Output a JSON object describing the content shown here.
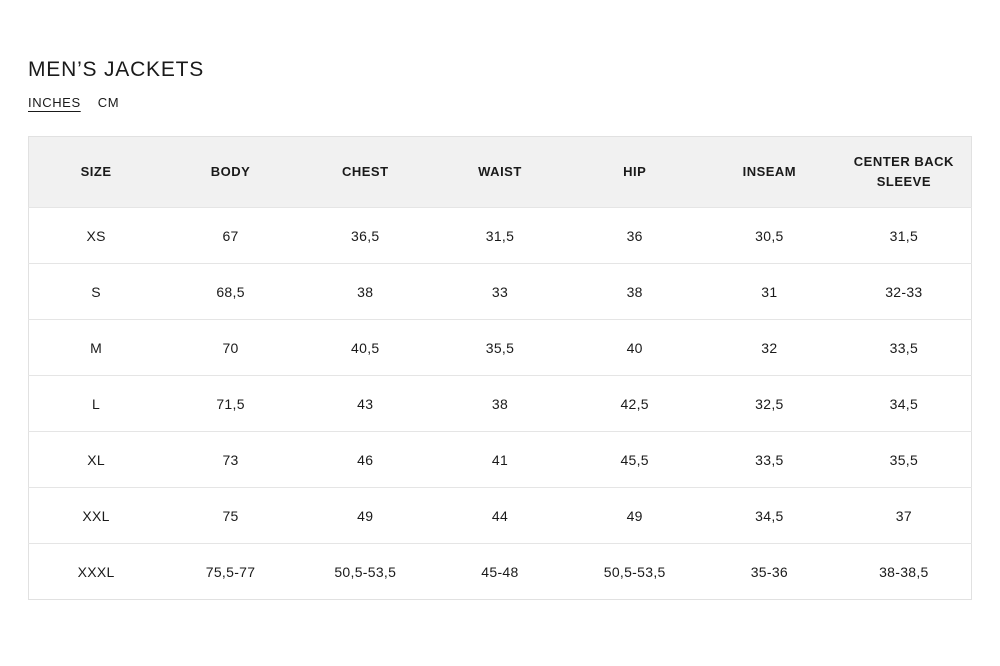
{
  "page": {
    "title": "MEN’S JACKETS"
  },
  "unit_toggle": {
    "inches_label": "INCHES",
    "cm_label": "CM",
    "selected": "INCHES"
  },
  "table": {
    "columns": [
      "SIZE",
      "BODY",
      "CHEST",
      "WAIST",
      "HIP",
      "INSEAM",
      "CENTER BACK SLEEVE"
    ],
    "rows": [
      [
        "XS",
        "67",
        "36,5",
        "31,5",
        "36",
        "30,5",
        "31,5"
      ],
      [
        "S",
        "68,5",
        "38",
        "33",
        "38",
        "31",
        "32-33"
      ],
      [
        "M",
        "70",
        "40,5",
        "35,5",
        "40",
        "32",
        "33,5"
      ],
      [
        "L",
        "71,5",
        "43",
        "38",
        "42,5",
        "32,5",
        "34,5"
      ],
      [
        "XL",
        "73",
        "46",
        "41",
        "45,5",
        "33,5",
        "35,5"
      ],
      [
        "XXL",
        "75",
        "49",
        "44",
        "49",
        "34,5",
        "37"
      ],
      [
        "XXXL",
        "75,5-77",
        "50,5-53,5",
        "45-48",
        "50,5-53,5",
        "35-36",
        "38-38,5"
      ]
    ]
  },
  "colors": {
    "text": "#1a1a1a",
    "header_background": "#f1f1f1",
    "border": "#e5e5e5",
    "page_background": "#ffffff"
  }
}
